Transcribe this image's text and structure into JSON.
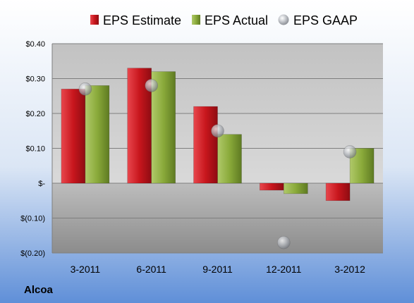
{
  "company": "Alcoa",
  "colors": {
    "estimate": "#c8161d",
    "actual": "#8aaa3a",
    "gaap": "#b8bcc4"
  },
  "chart_data": {
    "type": "bar",
    "categories": [
      "3-2011",
      "6-2011",
      "9-2011",
      "12-2011",
      "3-2012"
    ],
    "series": [
      {
        "name": "EPS Estimate",
        "values": [
          0.27,
          0.33,
          0.22,
          -0.02,
          -0.05
        ]
      },
      {
        "name": "EPS Actual",
        "values": [
          0.28,
          0.32,
          0.14,
          -0.03,
          0.1
        ]
      },
      {
        "name": "EPS GAAP",
        "values": [
          0.27,
          0.28,
          0.15,
          -0.17,
          0.09
        ]
      }
    ],
    "ylim": [
      -0.2,
      0.4
    ],
    "yticks": [
      0.4,
      0.3,
      0.2,
      0.1,
      0,
      -0.1,
      -0.2
    ],
    "ytick_labels": [
      "$0.40",
      "$0.30",
      "$0.20",
      "$0.10",
      "$-",
      "$(0.10)",
      "$(0.20)"
    ],
    "legend_position": "top",
    "grid": true
  }
}
